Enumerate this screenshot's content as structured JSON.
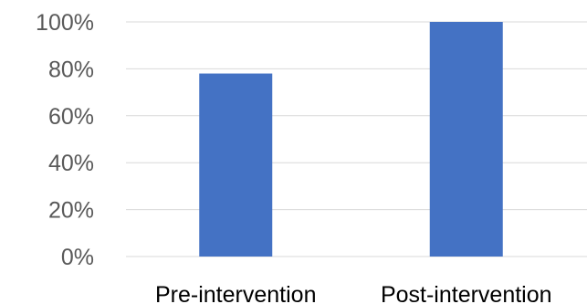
{
  "chart_data": {
    "type": "bar",
    "categories": [
      "Pre-intervention",
      "Post-intervention"
    ],
    "values": [
      78,
      100
    ],
    "ylim": [
      0,
      100
    ],
    "y_ticks": [
      0,
      20,
      40,
      60,
      80,
      100
    ],
    "y_tick_suffix": "%",
    "grid": true,
    "legend": "none",
    "title": "",
    "xlabel": "",
    "ylabel": ""
  },
  "colors": {
    "bar": "#4472c4",
    "grid": "#d9d9d9",
    "tick_text": "#595959",
    "category_text": "#000000"
  }
}
